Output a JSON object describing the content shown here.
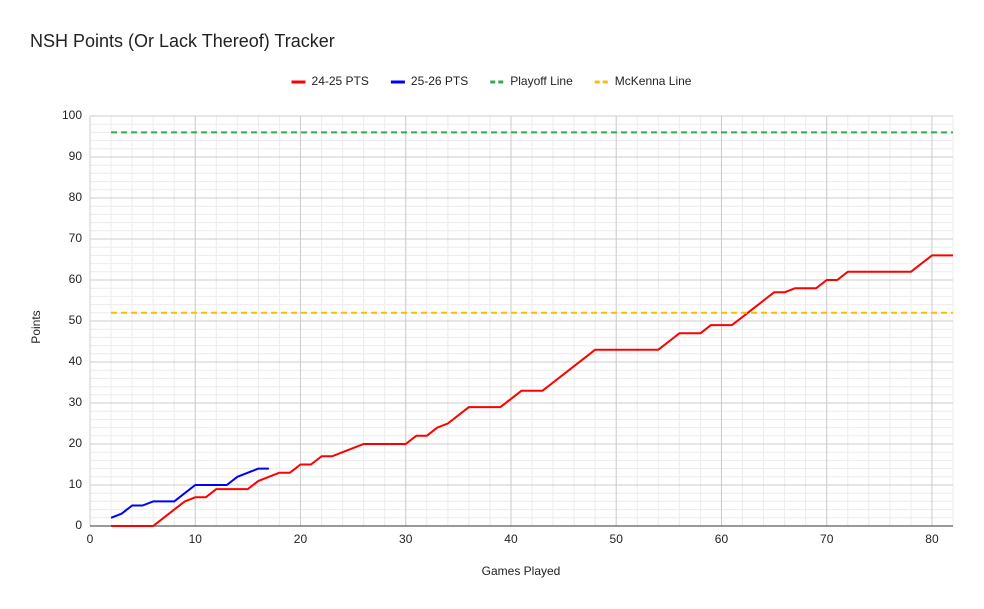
{
  "chart_data": {
    "type": "line",
    "title": "NSH Points (Or Lack Thereof) Tracker",
    "x_label": "Games Played",
    "y_label": "Points",
    "xlim": [
      0,
      82
    ],
    "xticks": [
      0,
      10,
      20,
      30,
      40,
      50,
      60,
      70,
      80
    ],
    "ylim": [
      0,
      100
    ],
    "yticks": [
      0,
      10,
      20,
      30,
      40,
      50,
      60,
      70,
      80,
      90,
      100
    ],
    "grid": true,
    "legend": "top",
    "series": [
      {
        "name": "24-25 PTS",
        "color": "#ff0000",
        "dashed": false,
        "x": [
          2,
          3,
          4,
          5,
          6,
          7,
          8,
          9,
          10,
          11,
          12,
          13,
          14,
          15,
          16,
          17,
          18,
          19,
          20,
          21,
          22,
          23,
          24,
          25,
          26,
          27,
          28,
          29,
          30,
          31,
          32,
          33,
          34,
          35,
          36,
          37,
          38,
          39,
          40,
          41,
          42,
          43,
          44,
          45,
          46,
          47,
          48,
          49,
          50,
          51,
          52,
          53,
          54,
          55,
          56,
          57,
          58,
          59,
          60,
          61,
          62,
          63,
          64,
          65,
          66,
          67,
          68,
          69,
          70,
          71,
          72,
          73,
          74,
          75,
          76,
          77,
          78,
          79,
          80,
          81,
          82
        ],
        "values": [
          0,
          0,
          0,
          0,
          0,
          2,
          4,
          6,
          7,
          7,
          9,
          9,
          9,
          9,
          11,
          12,
          13,
          13,
          15,
          15,
          17,
          17,
          18,
          19,
          20,
          20,
          20,
          20,
          20,
          22,
          22,
          24,
          25,
          27,
          29,
          29,
          29,
          29,
          31,
          33,
          33,
          33,
          35,
          37,
          39,
          41,
          43,
          43,
          43,
          43,
          43,
          43,
          43,
          45,
          47,
          47,
          47,
          49,
          49,
          49,
          51,
          53,
          55,
          57,
          57,
          58,
          58,
          58,
          60,
          60,
          62,
          62,
          62,
          62,
          62,
          62,
          62,
          64,
          66,
          66,
          66
        ]
      },
      {
        "name": "25-26 PTS",
        "color": "#0000ff",
        "dashed": false,
        "x": [
          2,
          3,
          4,
          5,
          6,
          7,
          8,
          9,
          10,
          11,
          12,
          13,
          14,
          15,
          16,
          17
        ],
        "values": [
          2,
          3,
          5,
          5,
          6,
          6,
          6,
          8,
          10,
          10,
          10,
          10,
          12,
          13,
          14,
          14
        ]
      },
      {
        "name": "Playoff Line",
        "color": "#34a853",
        "dashed": true,
        "x": [
          2,
          82
        ],
        "values": [
          96,
          96
        ]
      },
      {
        "name": "McKenna Line",
        "color": "#fbbc04",
        "dashed": true,
        "x": [
          2,
          82
        ],
        "values": [
          52,
          52
        ]
      }
    ]
  }
}
